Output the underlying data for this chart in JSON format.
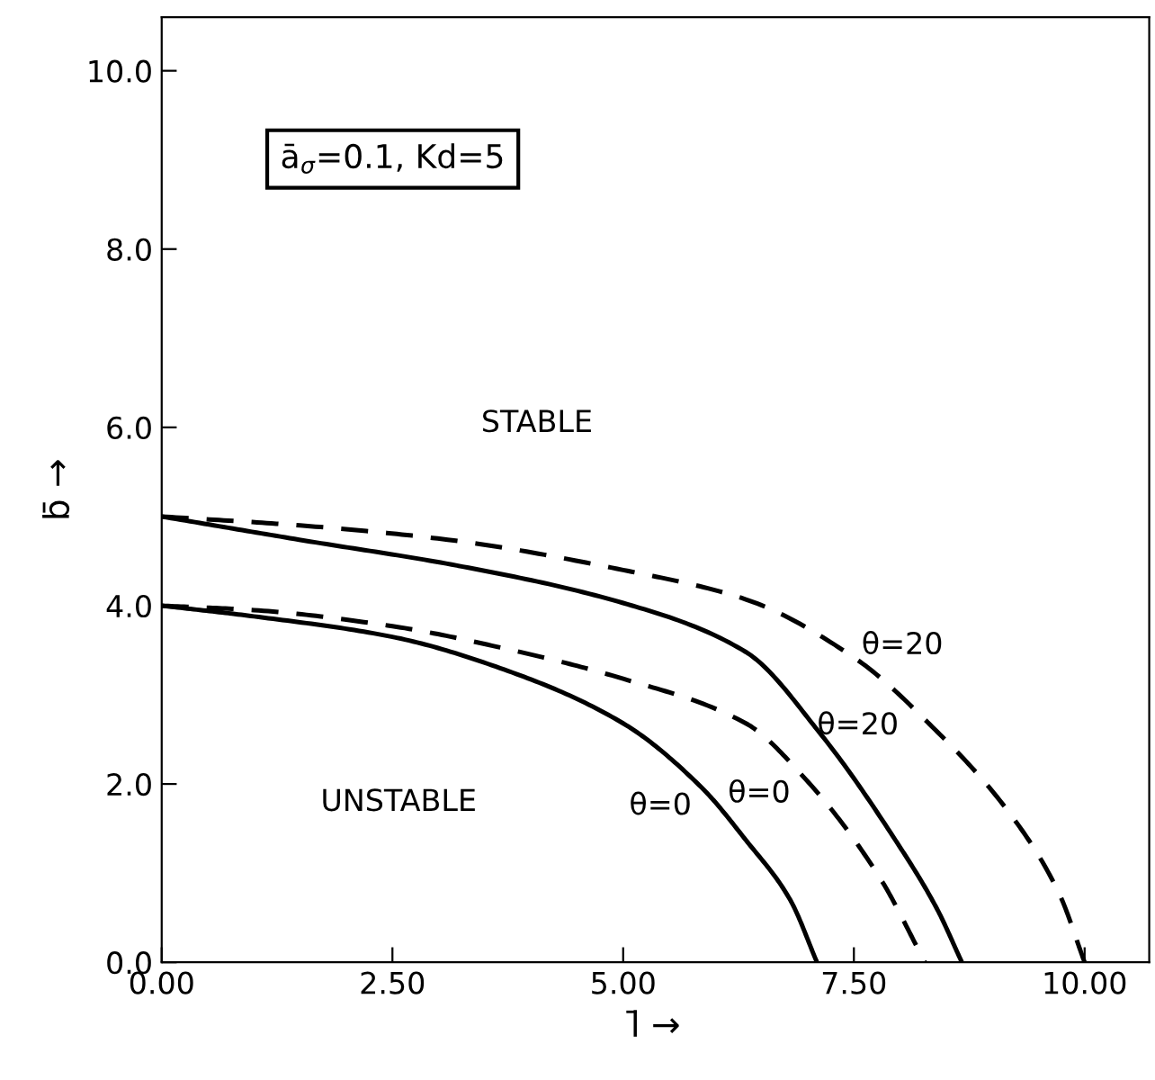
{
  "chart_data": {
    "type": "line",
    "xlabel": "l̄ →",
    "ylabel": "b̄ →",
    "xlim": [
      0,
      10.7
    ],
    "ylim": [
      0,
      10.6
    ],
    "xticks": [
      {
        "value": 0,
        "label": "0.00"
      },
      {
        "value": 2.5,
        "label": "2.50"
      },
      {
        "value": 5,
        "label": "5.00"
      },
      {
        "value": 7.5,
        "label": "7.50"
      },
      {
        "value": 10,
        "label": "10.00"
      }
    ],
    "yticks": [
      {
        "value": 0,
        "label": "0.0"
      },
      {
        "value": 2,
        "label": "2.0"
      },
      {
        "value": 4,
        "label": "4.0"
      },
      {
        "value": 6,
        "label": "6.0"
      },
      {
        "value": 8,
        "label": "8.0"
      },
      {
        "value": 10,
        "label": "10.0"
      }
    ],
    "grid": false,
    "legend": false,
    "series": [
      {
        "name": "θ=0",
        "color": "#000000",
        "line_style": "solid",
        "x": [
          0,
          1,
          2.5,
          3.8,
          5,
          5.85,
          6.33,
          6.81,
          7.1
        ],
        "values": [
          4,
          3.88,
          3.65,
          3.25,
          2.68,
          1.96,
          1.37,
          0.7,
          0
        ]
      },
      {
        "name": "θ=0",
        "color": "#000000",
        "line_style": "dashed",
        "x": [
          0,
          1,
          2.5,
          3.8,
          5,
          6.33,
          6.98,
          7.78,
          8.27
        ],
        "values": [
          4,
          3.95,
          3.77,
          3.5,
          3.18,
          2.68,
          2.05,
          0.95,
          0
        ]
      },
      {
        "name": "θ=20",
        "color": "#000000",
        "line_style": "solid",
        "x": [
          0,
          1.49,
          3.2,
          5,
          6.33,
          7.14,
          7.95,
          8.4,
          8.67
        ],
        "values": [
          5,
          4.74,
          4.45,
          4.03,
          3.48,
          2.56,
          1.37,
          0.6,
          0
        ]
      },
      {
        "name": "θ=20",
        "color": "#000000",
        "line_style": "dashed",
        "x": [
          0,
          1.5,
          3.1,
          5,
          6.33,
          7.54,
          8.35,
          9.16,
          9.72,
          10.0
        ],
        "values": [
          5,
          4.9,
          4.74,
          4.4,
          4.07,
          3.39,
          2.64,
          1.71,
          0.78,
          0
        ]
      }
    ],
    "annotations": [
      "ā$_{σ}$=0.1, Kd=5",
      "STABLE",
      "UNSTABLE"
    ]
  }
}
